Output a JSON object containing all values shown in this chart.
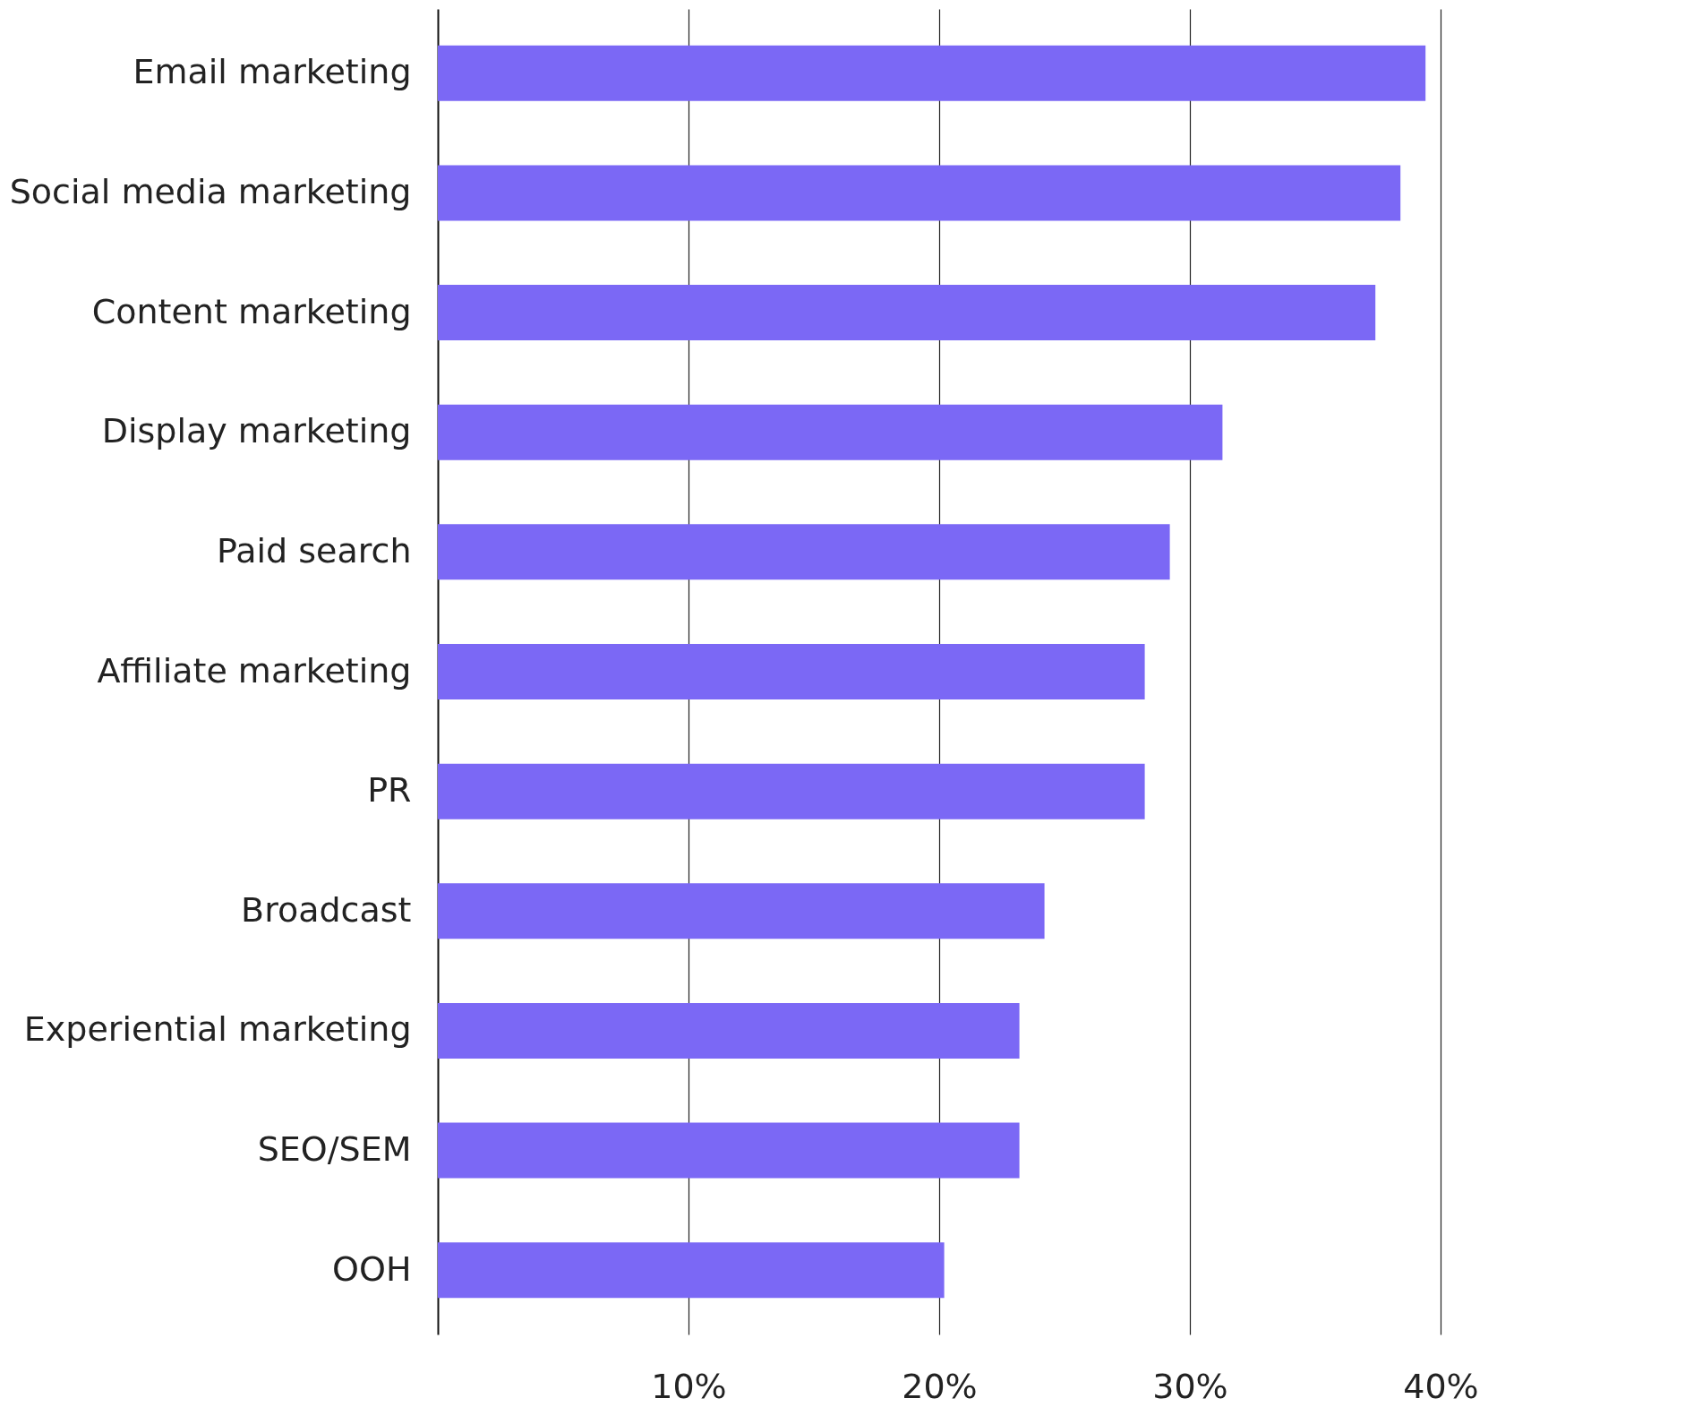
{
  "chart_data": {
    "type": "bar",
    "orientation": "horizontal",
    "categories": [
      "Email marketing",
      "Social media marketing",
      "Content marketing",
      "Display marketing",
      "Paid search",
      "Affiliate marketing",
      "PR",
      "Broadcast",
      "Experiential marketing",
      "SEO/SEM",
      "OOH"
    ],
    "values": [
      39.4,
      38.4,
      37.4,
      31.3,
      29.2,
      28.2,
      28.2,
      24.2,
      23.2,
      23.2,
      20.2
    ],
    "color": "#7b68f5",
    "xlim": [
      0,
      40
    ],
    "xticks": [
      {
        "value": 10,
        "label": "10%"
      },
      {
        "value": 20,
        "label": "20%"
      },
      {
        "value": 30,
        "label": "30%"
      },
      {
        "value": 40,
        "label": "40%"
      }
    ],
    "grid": "x"
  }
}
